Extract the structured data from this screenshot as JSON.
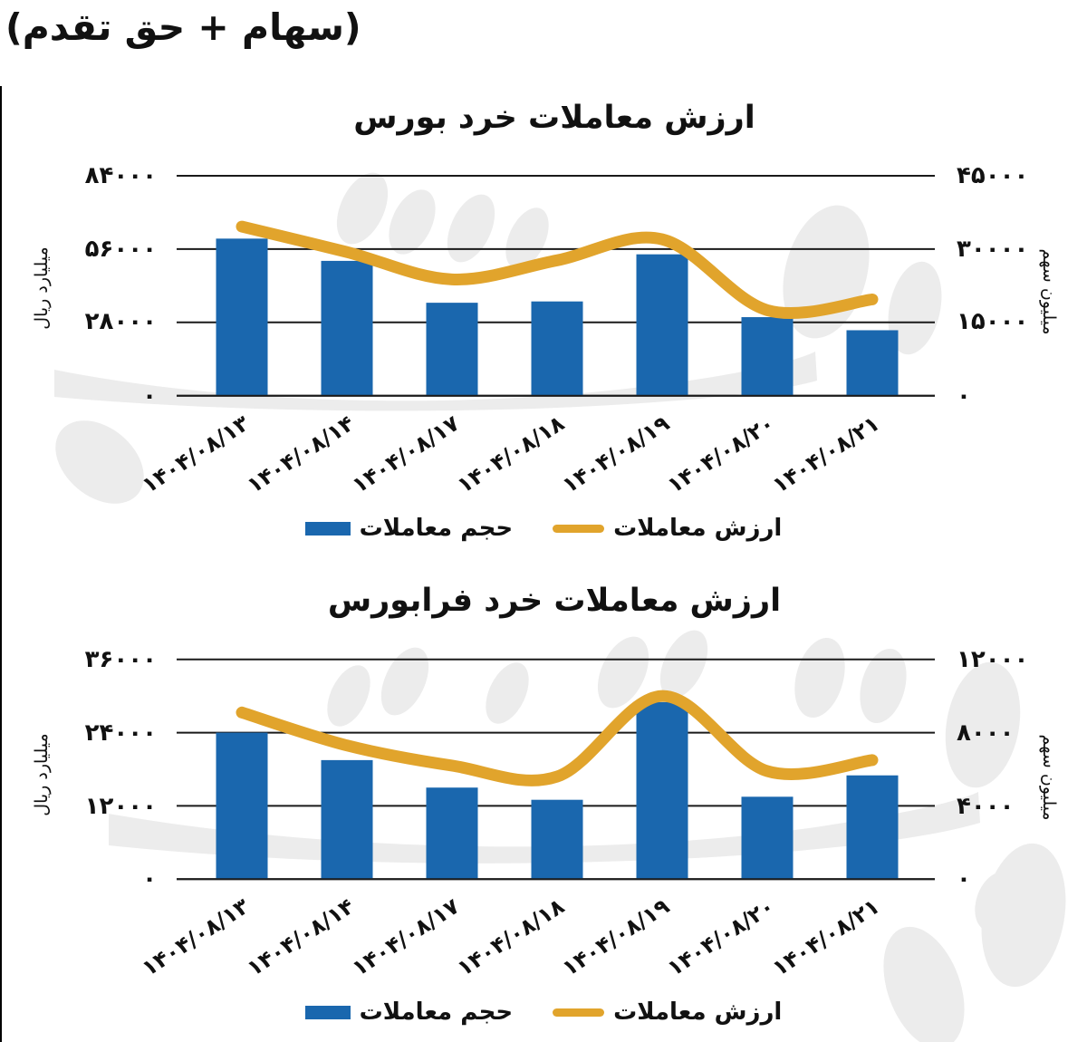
{
  "page": {
    "header_note": "(سهام + حق تقدم)"
  },
  "colors": {
    "bar": "#1a67ae",
    "line": "#e1a42c",
    "grid": "#1a1a1a",
    "text": "#111111",
    "watermark": "#ececec"
  },
  "chart_data": [
    {
      "type": "combo-bar-line",
      "title": "ارزش معاملات خرد بورس",
      "categories": [
        "۱۴۰۴/۰۸/۱۳",
        "۱۴۰۴/۰۸/۱۴",
        "۱۴۰۴/۰۸/۱۷",
        "۱۴۰۴/۰۸/۱۸",
        "۱۴۰۴/۰۸/۱۹",
        "۱۴۰۴/۰۸/۲۰",
        "۱۴۰۴/۰۸/۲۱"
      ],
      "series": [
        {
          "name": "حجم معاملات",
          "kind": "bar",
          "axis": "left",
          "values": [
            60000,
            51500,
            35500,
            36000,
            54000,
            30000,
            25000
          ]
        },
        {
          "name": "ارزش معاملات",
          "kind": "line",
          "axis": "right",
          "values": [
            34600,
            29400,
            23800,
            27700,
            32000,
            17500,
            19700
          ]
        }
      ],
      "left_axis": {
        "title": "میلیارد ریال",
        "ticks": [
          "۸۴۰۰۰",
          "۵۶۰۰۰",
          "۲۸۰۰۰",
          "۰"
        ],
        "lim": [
          0,
          84000
        ]
      },
      "right_axis": {
        "title": "میلیون سهم",
        "ticks": [
          "۴۵۰۰۰",
          "۳۰۰۰۰",
          "۱۵۰۰۰",
          "۰"
        ],
        "lim": [
          0,
          45000
        ]
      },
      "grid": true,
      "legend_position": "bottom"
    },
    {
      "type": "combo-bar-line",
      "title": "ارزش معاملات خرد فرابورس",
      "categories": [
        "۱۴۰۴/۰۸/۱۳",
        "۱۴۰۴/۰۸/۱۴",
        "۱۴۰۴/۰۸/۱۷",
        "۱۴۰۴/۰۸/۱۸",
        "۱۴۰۴/۰۸/۱۹",
        "۱۴۰۴/۰۸/۲۰",
        "۱۴۰۴/۰۸/۲۱"
      ],
      "series": [
        {
          "name": "حجم معاملات",
          "kind": "bar",
          "axis": "left",
          "values": [
            24000,
            19500,
            15000,
            13000,
            29000,
            13500,
            17000
          ]
        },
        {
          "name": "ارزش معاملات",
          "kind": "line",
          "axis": "right",
          "values": [
            9100,
            7300,
            6200,
            5600,
            10000,
            5900,
            6500
          ]
        }
      ],
      "left_axis": {
        "title": "میلیارد ریال",
        "ticks": [
          "۳۶۰۰۰",
          "۲۴۰۰۰",
          "۱۲۰۰۰",
          "۰"
        ],
        "lim": [
          0,
          36000
        ]
      },
      "right_axis": {
        "title": "میلیون سهم",
        "ticks": [
          "۱۲۰۰۰",
          "۸۰۰۰",
          "۴۰۰۰",
          "۰"
        ],
        "lim": [
          0,
          12000
        ]
      },
      "grid": true,
      "legend_position": "bottom"
    }
  ]
}
